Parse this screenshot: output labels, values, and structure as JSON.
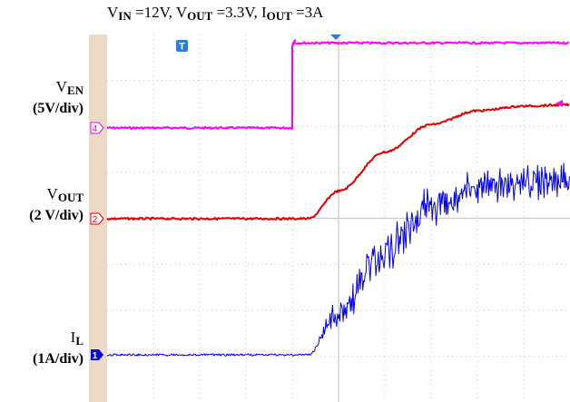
{
  "title": {
    "vin_main": "V",
    "vin_sub": "IN",
    "vin_val": " =12V, ",
    "vout_main": "V",
    "vout_sub": "OUT",
    "vout_val": " =3.3V, ",
    "iout_main": "I",
    "iout_sub": "OUT",
    "iout_val": " =3A"
  },
  "labels": {
    "ven_main": "V",
    "ven_sub": "EN",
    "ven_scale": "(5V/div)",
    "vout_main": "V",
    "vout_sub": "OUT",
    "vout_scale": "(2 V/div)",
    "il_main": "I",
    "il_sub": "L",
    "il_scale": "(1A/div)"
  },
  "markers": {
    "trigger": "T",
    "ch4": "4",
    "ch2": "2",
    "ch1": "1"
  },
  "colors": {
    "ch4": "#ff00ff",
    "ch2": "#e00000",
    "ch1": "#0000ee",
    "bezel": "#ecd9c6",
    "grid": "#c8c8c8",
    "trigger": "#2a7fd4"
  },
  "chart_data": {
    "type": "line",
    "title": "",
    "grid": true,
    "divisions": {
      "horizontal": 10,
      "vertical": 8
    },
    "series": [
      {
        "name": "V_EN (5V/div)",
        "x_div": [
          0,
          4.0,
          4.0,
          4.5,
          10
        ],
        "y_div": [
          0,
          0,
          1.85,
          1.85,
          1.85
        ]
      },
      {
        "name": "V_OUT (2 V/div)",
        "x_div": [
          0,
          4.35,
          5.0,
          6.0,
          7.0,
          8.0,
          9.0,
          10
        ],
        "y_div": [
          0,
          0,
          0.6,
          1.45,
          2.05,
          2.35,
          2.45,
          2.48
        ]
      },
      {
        "name": "I_L (1A/div)",
        "x_div": [
          0,
          4.35,
          5.0,
          6.0,
          7.0,
          8.0,
          9.0,
          10
        ],
        "y_div": [
          0,
          0,
          0.9,
          2.3,
          3.2,
          3.6,
          3.75,
          3.8
        ],
        "ripple_div": [
          0,
          0,
          0.35,
          0.5,
          0.45,
          0.4,
          0.38,
          0.36
        ]
      }
    ]
  }
}
